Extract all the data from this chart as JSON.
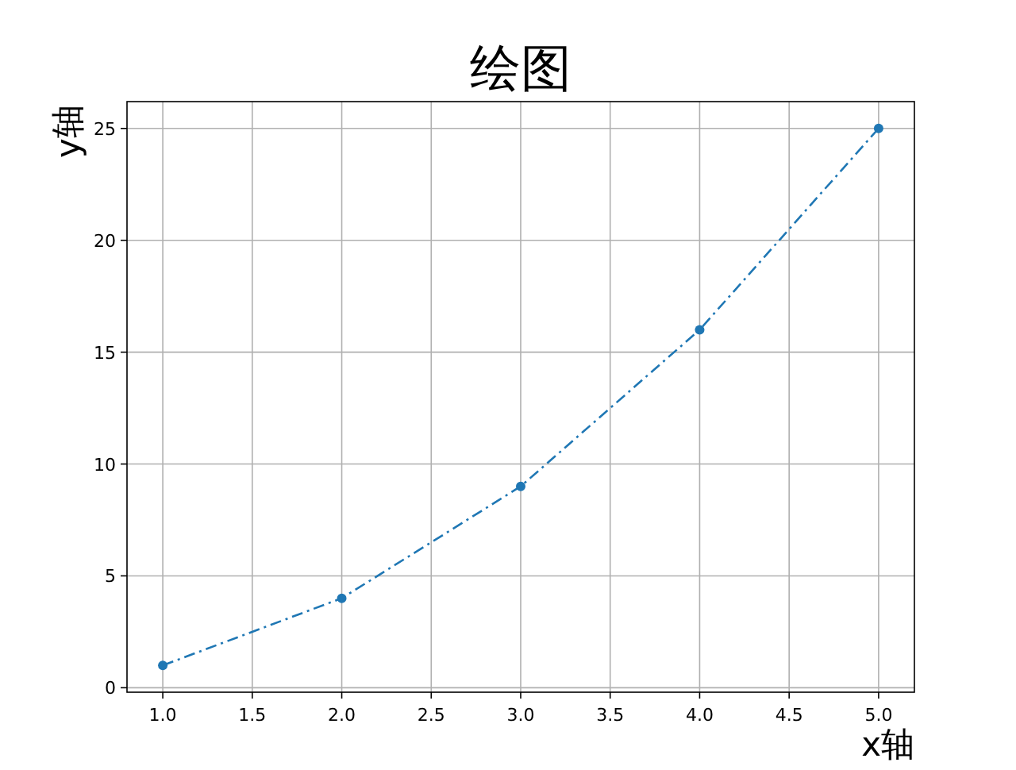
{
  "chart_data": {
    "type": "line",
    "title": "绘图",
    "xlabel": "x轴",
    "ylabel": "y轴",
    "x": [
      1,
      2,
      3,
      4,
      5
    ],
    "series": [
      {
        "color": "#1f77b4",
        "values": [
          1,
          4,
          9,
          16,
          25
        ]
      }
    ],
    "xlim": [
      0.8,
      5.2
    ],
    "ylim": [
      -0.2,
      26.2
    ],
    "xticks": [
      {
        "value": 1,
        "label": "1.0"
      },
      {
        "value": 1.5,
        "label": "1.5"
      },
      {
        "value": 2,
        "label": "2.0"
      },
      {
        "value": 2.5,
        "label": "2.5"
      },
      {
        "value": 3,
        "label": "3.0"
      },
      {
        "value": 3.5,
        "label": "3.5"
      },
      {
        "value": 4,
        "label": "4.0"
      },
      {
        "value": 4.5,
        "label": "4.5"
      },
      {
        "value": 5,
        "label": "5.0"
      }
    ],
    "yticks": [
      0,
      5,
      10,
      15,
      20,
      25
    ],
    "grid": true,
    "marker": "circle",
    "line_style": "dashdot"
  }
}
